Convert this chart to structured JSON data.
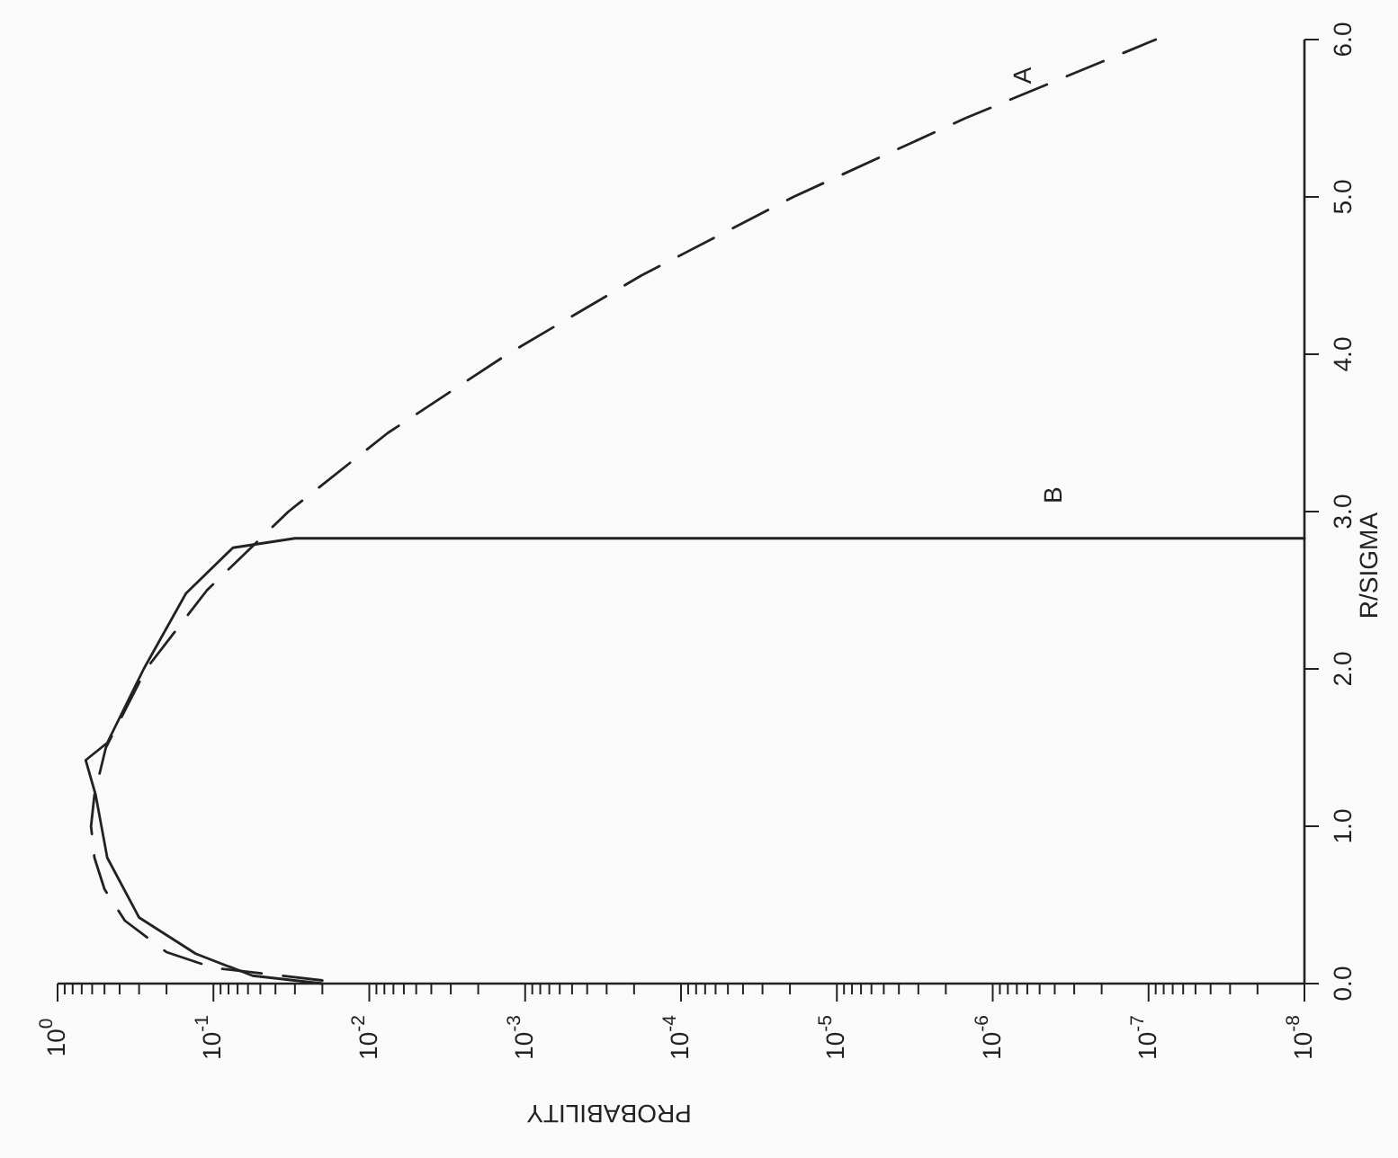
{
  "chart_data": {
    "type": "line",
    "xlabel": "PROBABILITY",
    "ylabel": "R/SIGMA",
    "log": "x",
    "grid": false,
    "legend": false,
    "xlim": [
      1,
      1e-08
    ],
    "xticks": [
      {
        "value": 1,
        "label": "10$^{0}$"
      },
      {
        "value": 0.1,
        "label": "10$^{-1}$"
      },
      {
        "value": 0.01,
        "label": "10$^{-2}$"
      },
      {
        "value": 0.001,
        "label": "10$^{-3}$"
      },
      {
        "value": 0.0001,
        "label": "10$^{-4}$"
      },
      {
        "value": 1e-05,
        "label": "10$^{-5}$"
      },
      {
        "value": 1e-06,
        "label": "10$^{-6}$"
      },
      {
        "value": 1e-07,
        "label": "10$^{-7}$"
      },
      {
        "value": 1e-08,
        "label": "10$^{-8}$"
      },
      {
        "value": 0.9,
        "label": null
      },
      {
        "value": 0.8,
        "label": null
      },
      {
        "value": 0.7,
        "label": null
      },
      {
        "value": 0.6,
        "label": null
      },
      {
        "value": 0.5,
        "label": null
      },
      {
        "value": 0.4,
        "label": null
      },
      {
        "value": 0.3,
        "label": null
      },
      {
        "value": 0.2,
        "label": null
      },
      {
        "value": 0.09,
        "label": null
      },
      {
        "value": 0.08,
        "label": null
      },
      {
        "value": 0.07,
        "label": null
      },
      {
        "value": 0.06,
        "label": null
      },
      {
        "value": 0.05,
        "label": null
      },
      {
        "value": 0.04,
        "label": null
      },
      {
        "value": 0.03,
        "label": null
      },
      {
        "value": 0.02,
        "label": null
      },
      {
        "value": 0.009,
        "label": null
      },
      {
        "value": 0.008,
        "label": null
      },
      {
        "value": 0.007,
        "label": null
      },
      {
        "value": 0.006,
        "label": null
      },
      {
        "value": 0.005,
        "label": null
      },
      {
        "value": 0.004,
        "label": null
      },
      {
        "value": 0.003,
        "label": null
      },
      {
        "value": 0.002,
        "label": null
      },
      {
        "value": 0.0009,
        "label": null
      },
      {
        "value": 0.0008,
        "label": null
      },
      {
        "value": 0.0007,
        "label": null
      },
      {
        "value": 0.0006,
        "label": null
      },
      {
        "value": 0.0005,
        "label": null
      },
      {
        "value": 0.0004,
        "label": null
      },
      {
        "value": 0.0003,
        "label": null
      },
      {
        "value": 0.0002,
        "label": null
      },
      {
        "value": 9e-05,
        "label": null
      },
      {
        "value": 8e-05,
        "label": null
      },
      {
        "value": 7e-05,
        "label": null
      },
      {
        "value": 6e-05,
        "label": null
      },
      {
        "value": 5e-05,
        "label": null
      },
      {
        "value": 4e-05,
        "label": null
      },
      {
        "value": 3e-05,
        "label": null
      },
      {
        "value": 2e-05,
        "label": null
      },
      {
        "value": 9e-06,
        "label": null
      },
      {
        "value": 8e-06,
        "label": null
      },
      {
        "value": 7e-06,
        "label": null
      },
      {
        "value": 6e-06,
        "label": null
      },
      {
        "value": 5e-06,
        "label": null
      },
      {
        "value": 4e-06,
        "label": null
      },
      {
        "value": 3e-06,
        "label": null
      },
      {
        "value": 2e-06,
        "label": null
      },
      {
        "value": 9e-07,
        "label": null
      },
      {
        "value": 8e-07,
        "label": null
      },
      {
        "value": 7e-07,
        "label": null
      },
      {
        "value": 6e-07,
        "label": null
      },
      {
        "value": 5e-07,
        "label": null
      },
      {
        "value": 4e-07,
        "label": null
      },
      {
        "value": 3e-07,
        "label": null
      },
      {
        "value": 2e-07,
        "label": null
      },
      {
        "value": 9e-08,
        "label": null
      },
      {
        "value": 8e-08,
        "label": null
      },
      {
        "value": 7e-08,
        "label": null
      },
      {
        "value": 6e-08,
        "label": null
      },
      {
        "value": 5e-08,
        "label": null
      },
      {
        "value": 4e-08,
        "label": null
      },
      {
        "value": 3e-08,
        "label": null
      },
      {
        "value": 2e-08,
        "label": null
      }
    ],
    "ylim": [
      0,
      6
    ],
    "yticks": [
      {
        "value": 0,
        "label": "0.0"
      },
      {
        "value": 1,
        "label": "1.0"
      },
      {
        "value": 2,
        "label": "2.0"
      },
      {
        "value": 3,
        "label": "3.0"
      },
      {
        "value": 4,
        "label": "4.0"
      },
      {
        "value": 5,
        "label": "5.0"
      },
      {
        "value": 6,
        "label": "6.0"
      }
    ],
    "series": [
      {
        "name": "A",
        "color": "#222222",
        "line_style": "dashed",
        "x": [
          0.02,
          0.1,
          0.2,
          0.37,
          0.5,
          0.58,
          0.61,
          0.58,
          0.49,
          0.27,
          0.11,
          0.033,
          0.0076,
          0.0013,
          0.00018,
          1.9e-05,
          1.5e-06,
          9e-08
        ],
        "values": [
          0.02,
          0.1,
          0.2,
          0.4,
          0.6,
          0.8,
          1.0,
          1.2,
          1.5,
          2.0,
          2.5,
          3.0,
          3.5,
          4.0,
          4.5,
          5.0,
          5.5,
          6.0
        ]
      },
      {
        "name": "B",
        "color": "#222222",
        "line_style": "solid",
        "x": [
          0.02,
          0.056,
          0.13,
          0.3,
          0.48,
          0.57,
          0.66,
          0.48,
          0.28,
          0.15,
          0.075,
          0.03,
          1e-08
        ],
        "values": [
          0.0,
          0.05,
          0.19,
          0.42,
          0.8,
          1.2,
          1.42,
          1.53,
          2.0,
          2.48,
          2.77,
          2.83,
          2.83
        ]
      }
    ]
  }
}
